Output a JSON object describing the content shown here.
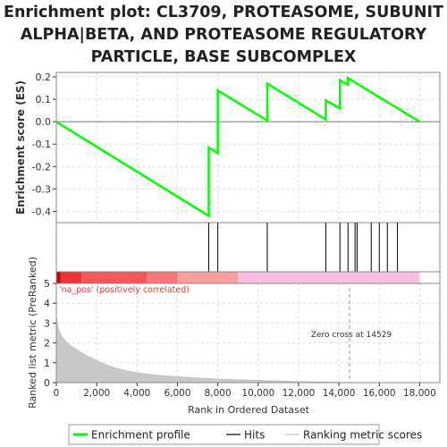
{
  "title_lines": [
    "Enrichment plot: CL3709, PROTEASOME, SUBUNIT",
    "ALPHA|BETA, AND PROTEASOME REGULATORY",
    "PARTICLE, BASE SUBCOMPLEX"
  ],
  "chart_data": {
    "type": "line",
    "es_panel": {
      "ylabel": "Enrichment score (ES)",
      "ylim": [
        -0.45,
        0.22
      ],
      "yticks": [
        -0.4,
        -0.3,
        -0.2,
        -0.1,
        0.0,
        0.1,
        0.2
      ],
      "ytick_labels": [
        "-0.4",
        "-0.3",
        "-0.2",
        "-0.1",
        "0.0",
        "0.1",
        "0.2"
      ],
      "grid": true,
      "series": [
        {
          "name": "Enrichment profile",
          "color": "#00ff00",
          "x": [
            0,
            7550,
            7550,
            8000,
            8000,
            10450,
            10450,
            13350,
            13350,
            14050,
            14050,
            14450,
            14450,
            18000
          ],
          "y": [
            0.0,
            -0.42,
            -0.115,
            -0.14,
            0.14,
            0.005,
            0.17,
            0.01,
            0.095,
            0.06,
            0.185,
            0.165,
            0.195,
            0.0
          ]
        }
      ]
    },
    "hits": [
      7550,
      8000,
      10450,
      13350,
      14050,
      14450,
      14800,
      14900,
      15600,
      16000,
      16400,
      16900
    ],
    "ranking_panel": {
      "ylabel": "Ranked list metric (PreRanked)",
      "xlabel": "Rank in Ordered Dataset",
      "xlim": [
        0,
        19000
      ],
      "xticks": [
        0,
        2000,
        4000,
        6000,
        8000,
        10000,
        12000,
        14000,
        16000,
        18000
      ],
      "xtick_labels": [
        "0",
        "2,000",
        "4,000",
        "6,000",
        "8,000",
        "10,000",
        "12,000",
        "14,000",
        "16,000",
        "18,000"
      ],
      "ylim": [
        0,
        5
      ],
      "yticks": [
        0,
        1,
        2,
        3,
        4,
        5
      ],
      "ytick_labels": [
        "0",
        "1",
        "2",
        "3",
        "4",
        "5"
      ],
      "series": [
        {
          "name": "Ranking metric scores",
          "color": "#c8c8c8",
          "x": [
            0,
            50,
            150,
            300,
            500,
            800,
            1200,
            1600,
            2000,
            2500,
            3000,
            3500,
            4000,
            5000,
            6000,
            7000,
            8000,
            9000,
            10000,
            11000,
            12000,
            13000,
            14000,
            14529
          ],
          "y": [
            3.4,
            3.0,
            2.6,
            2.3,
            2.05,
            1.8,
            1.55,
            1.32,
            1.12,
            0.9,
            0.72,
            0.6,
            0.5,
            0.38,
            0.3,
            0.24,
            0.19,
            0.15,
            0.12,
            0.09,
            0.06,
            0.04,
            0.02,
            0.0
          ]
        }
      ],
      "zero_cross": 14529,
      "zero_cross_label": "Zero cross at 14529",
      "pos_label": "'na_pos' (positively correlated)"
    },
    "colorbar_segments": [
      {
        "from": 0,
        "to": 200,
        "color": "#cc0000"
      },
      {
        "from": 200,
        "to": 1250,
        "color": "#ee3333"
      },
      {
        "from": 1250,
        "to": 4500,
        "color": "#f25858"
      },
      {
        "from": 4500,
        "to": 6000,
        "color": "#f57878"
      },
      {
        "from": 6000,
        "to": 9000,
        "color": "#f8a0a0"
      },
      {
        "from": 9000,
        "to": 18000,
        "color": "#fbbde0"
      }
    ],
    "legend": {
      "position": "bottom",
      "items": [
        {
          "label": "Enrichment profile",
          "kind": "line",
          "color": "#00ff00"
        },
        {
          "label": "Hits",
          "kind": "line",
          "color": "#000000"
        },
        {
          "label": "Ranking metric scores",
          "kind": "line",
          "color": "#c8c8c8"
        }
      ]
    }
  }
}
